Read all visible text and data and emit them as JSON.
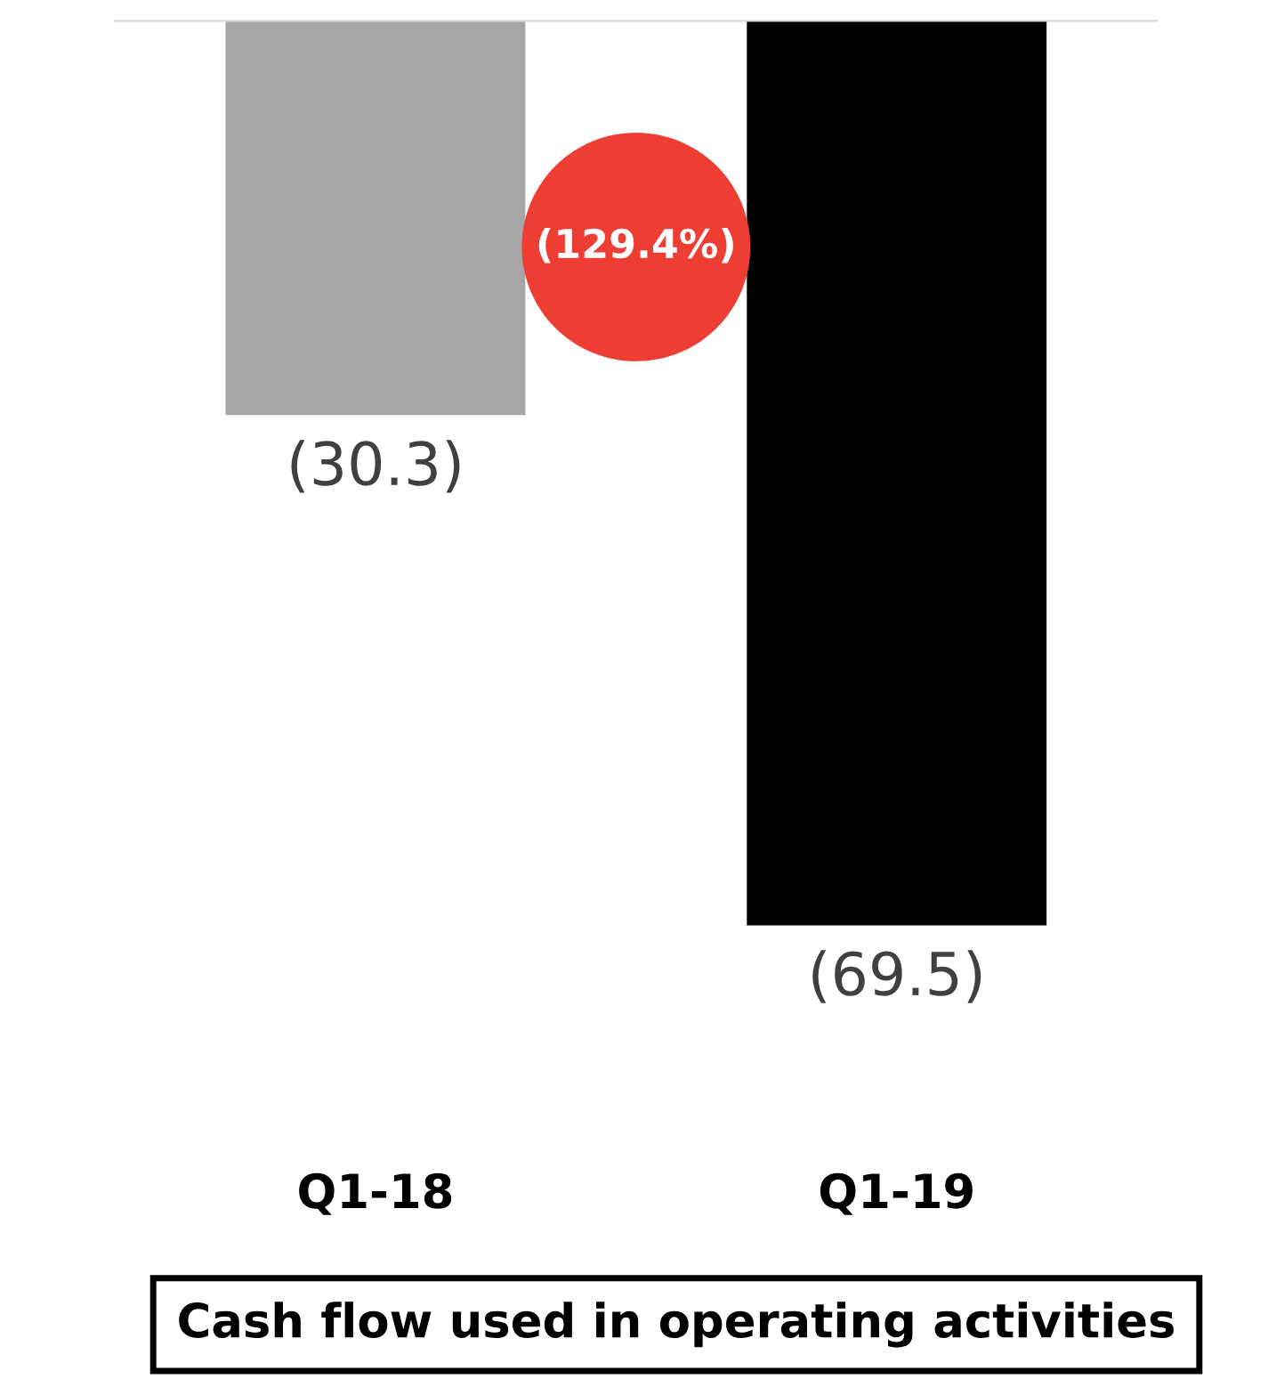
{
  "chart_data": {
    "type": "bar",
    "title": "Cash flow used in operating activities",
    "categories": [
      "Q1-18",
      "Q1-19"
    ],
    "values": [
      -30.3,
      -69.5
    ],
    "colors": [
      "#a6a6a6",
      "#000000"
    ],
    "value_labels": [
      "(30.3)",
      "(69.5)"
    ],
    "annotations": [
      "(129.4%)"
    ],
    "grid": false,
    "legend": false
  }
}
